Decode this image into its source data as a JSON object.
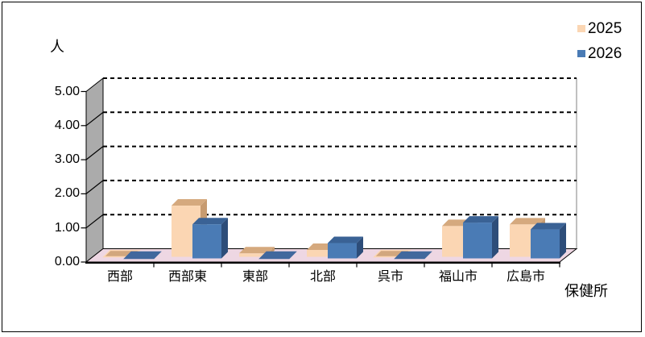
{
  "chart_data": {
    "type": "bar",
    "variant": "3d-clustered-column",
    "title": "",
    "unit_label": "人",
    "xlabel": "保健所",
    "categories": [
      "西部",
      "西部東",
      "東部",
      "北部",
      "呉市",
      "福山市",
      "広島市"
    ],
    "series": [
      {
        "name": "2025",
        "values": [
          0,
          1.5,
          0.1,
          0.2,
          0,
          0.9,
          0.95
        ],
        "color": "#FBD6B3",
        "top_color": "#D5A97E",
        "side_color": "#C79B70",
        "flat_color": "#D2A77E",
        "flat_edge": "#FBD6B3"
      },
      {
        "name": "2026",
        "values": [
          0,
          1.0,
          0,
          0.45,
          0,
          1.05,
          0.85
        ],
        "color": "#4A7BB5",
        "top_color": "#3A6295",
        "side_color": "#2D4D79",
        "flat_color": "#41689D",
        "flat_edge": "#41689D"
      }
    ],
    "ylim": [
      0,
      5
    ],
    "ytick_labels": [
      "0.00",
      "1.00",
      "2.00",
      "3.00",
      "4.00",
      "5.00"
    ],
    "grid": "dashed-horizontal",
    "legend_position": "top-right",
    "colors": {
      "background": "#FFFFFF",
      "border": "#000000",
      "floor": "#EED7E3",
      "wall": "#ABABAB",
      "wall_edge": "#000000",
      "gridline": "#000000",
      "backwall_edge": "#808080"
    }
  }
}
